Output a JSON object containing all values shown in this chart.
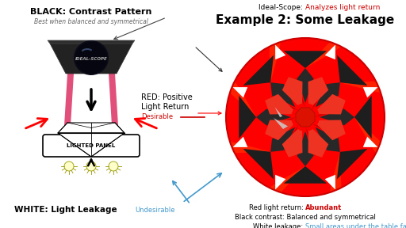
{
  "bg_color": "#ffffff",
  "title_left_line1": "BLACK: Contrast Pattern",
  "title_left_line2": "Best when balanced and symmetrical",
  "red_label_line1": "RED: Positive",
  "red_label_line2": "Light Return",
  "red_label_desirable": "Desirable",
  "white_label": "WHITE: Light Leakage",
  "white_undesirable": "Undesirable",
  "lighted_panel": "LIGHTED PANEL",
  "title_right_part1": "Ideal-Scope: ",
  "title_right_part2": "Analyzes light return",
  "subtitle_right": "Example 2: Some Leakage",
  "bottom_line1_part1": "Red light return: ",
  "bottom_line1_part2": "Abundant",
  "bottom_line2": "Black contrast: Balanced and symmetrical",
  "bottom_line3_part1": "White leakage: ",
  "bottom_line3_part2": "Small areas under the table facet",
  "color_red": "#cc0000",
  "color_red_bright": "#ff0000",
  "color_blue": "#4499cc",
  "color_pink": "#e0507a",
  "color_dark": "#1a1a1a",
  "color_scope_dark": "#1c1c1c",
  "color_dark_facet": "#2a2a2a"
}
